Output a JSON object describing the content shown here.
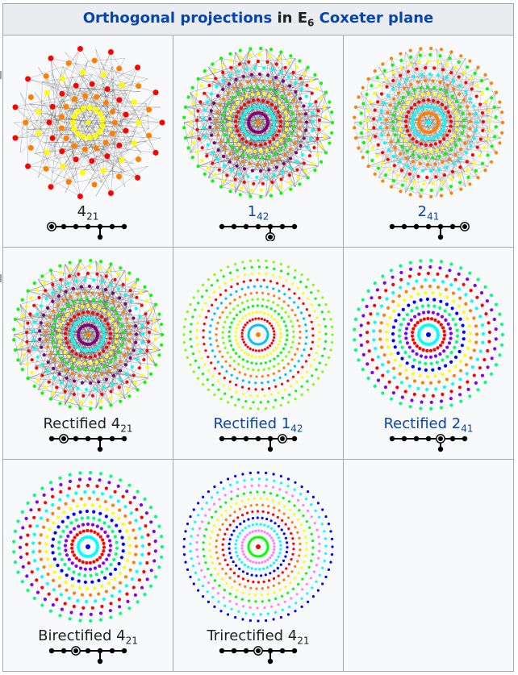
{
  "title": {
    "part1_link": "Orthogonal projections",
    "part2": " in E",
    "sub": "6",
    "part3_link": " Coxeter plane"
  },
  "colors": {
    "link": "#0645ad",
    "text": "#202122",
    "header_bg": "#eaecf0",
    "cell_bg": "#f8f9fa",
    "border": "#a2a9b1"
  },
  "cells": [
    {
      "name": "4-21",
      "base": "4",
      "sub": "21",
      "link": false,
      "ring": 0,
      "style": "sparse"
    },
    {
      "name": "1-42",
      "base": "1",
      "sub": "42",
      "link": true,
      "ring": 7,
      "style": "dense"
    },
    {
      "name": "2-41",
      "base": "2",
      "sub": "41",
      "link": true,
      "ring": 6,
      "style": "medium"
    },
    {
      "name": "rectified-4-21",
      "base": "Rectified 4",
      "sub": "21",
      "link": false,
      "ring": 1,
      "style": "dense"
    },
    {
      "name": "rectified-1-42",
      "base": "Rectified 1",
      "sub": "42",
      "link": true,
      "ring": 5,
      "style": "green"
    },
    {
      "name": "rectified-2-41",
      "base": "Rectified 2",
      "sub": "41",
      "link": true,
      "ring": 4,
      "style": "rainbow"
    },
    {
      "name": "birectified-4-21",
      "base": "Birectified 4",
      "sub": "21",
      "link": false,
      "ring": 2,
      "style": "rainbow"
    },
    {
      "name": "trirectified-4-21",
      "base": "Trirectified 4",
      "sub": "21",
      "link": false,
      "ring": 3,
      "style": "blue"
    },
    {
      "name": "empty",
      "base": "",
      "sub": "",
      "link": false,
      "ring": -1,
      "style": "none"
    }
  ]
}
